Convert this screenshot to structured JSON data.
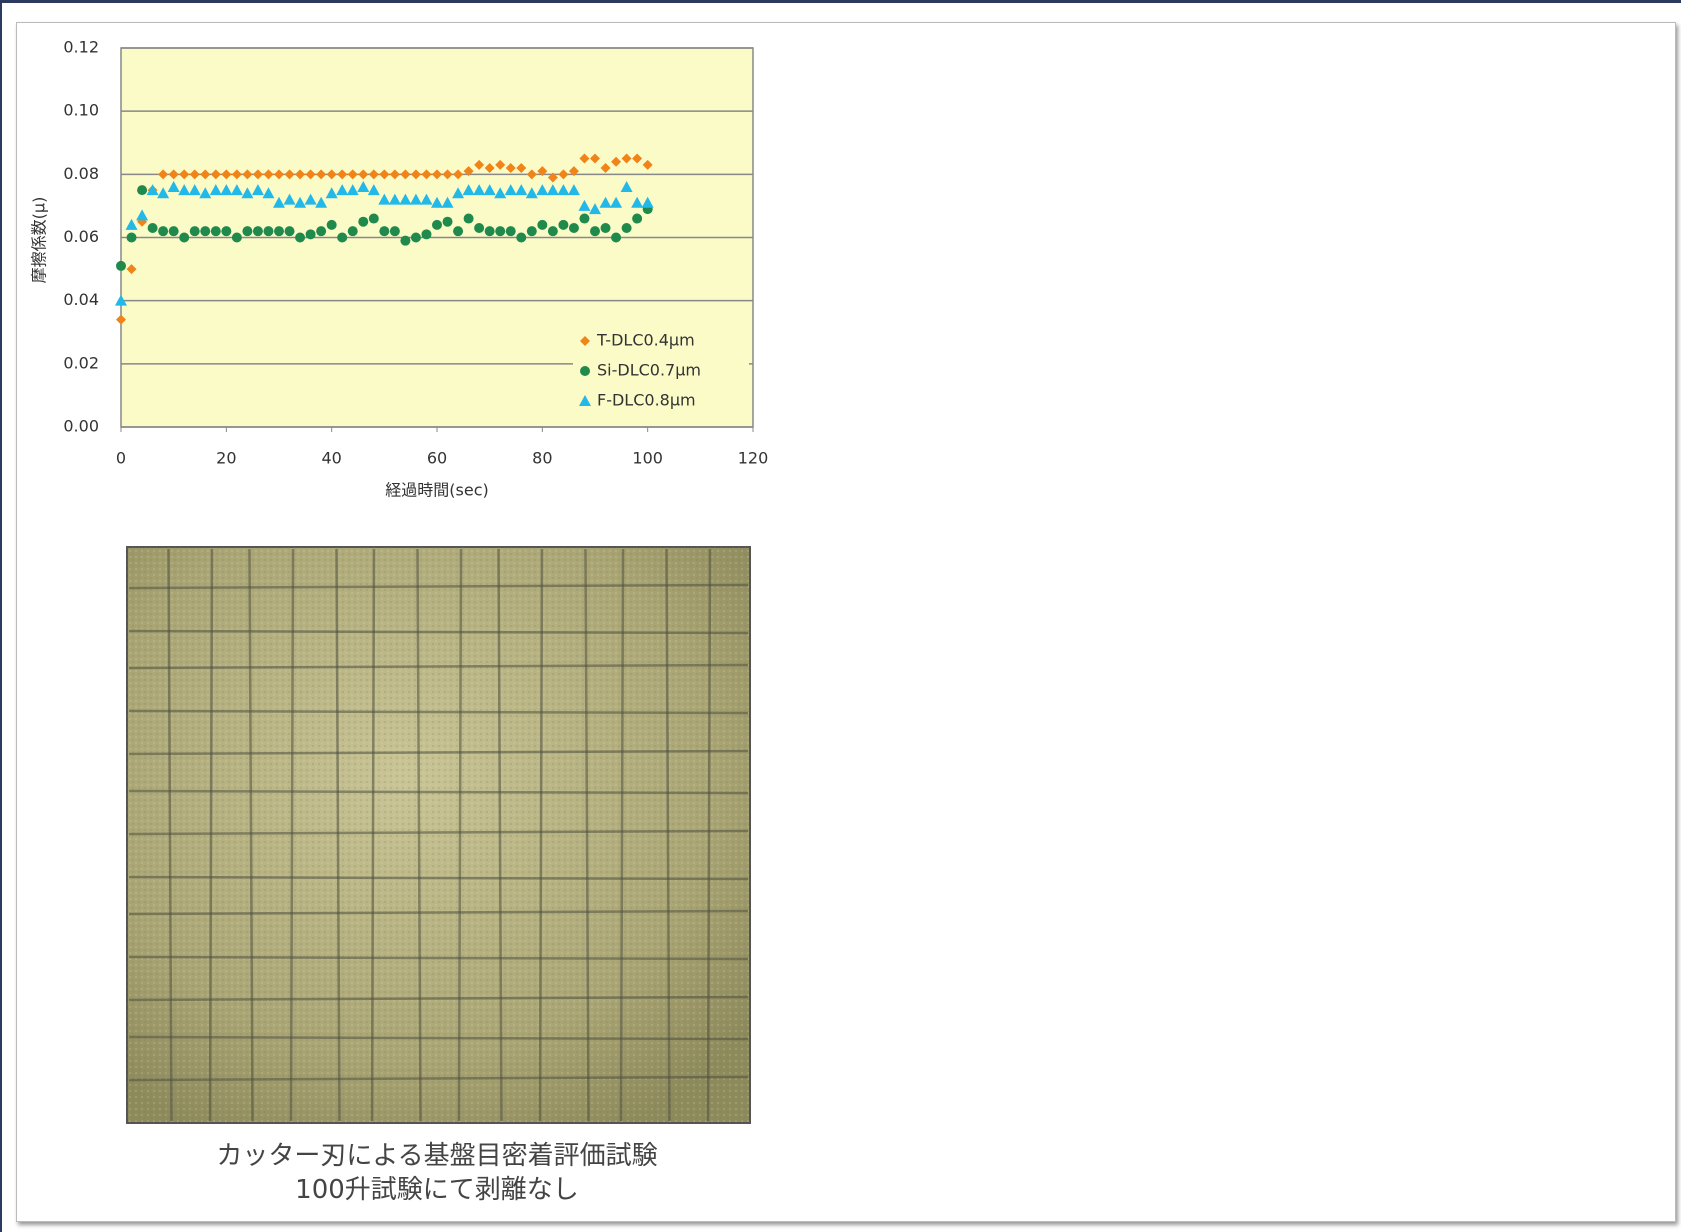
{
  "chart_data": {
    "type": "scatter",
    "y_label": "摩擦係数(μ)",
    "x_label": "経過時間(sec)",
    "x": [
      0,
      2,
      4,
      6,
      8,
      10,
      12,
      14,
      16,
      18,
      20,
      22,
      24,
      26,
      28,
      30,
      32,
      34,
      36,
      38,
      40,
      42,
      44,
      46,
      48,
      50,
      52,
      54,
      56,
      58,
      60,
      62,
      64,
      66,
      68,
      70,
      72,
      74,
      76,
      78,
      80,
      82,
      84,
      86,
      88,
      90,
      92,
      94,
      96,
      98,
      100
    ],
    "series": [
      {
        "name": "T-DLC0.4μm",
        "color": "#f08418",
        "marker": "diamond",
        "values": [
          0.034,
          0.05,
          0.065,
          0.075,
          0.08,
          0.08,
          0.08,
          0.08,
          0.08,
          0.08,
          0.08,
          0.08,
          0.08,
          0.08,
          0.08,
          0.08,
          0.08,
          0.08,
          0.08,
          0.08,
          0.08,
          0.08,
          0.08,
          0.08,
          0.08,
          0.08,
          0.08,
          0.08,
          0.08,
          0.08,
          0.08,
          0.08,
          0.08,
          0.081,
          0.083,
          0.082,
          0.083,
          0.082,
          0.082,
          0.08,
          0.081,
          0.079,
          0.08,
          0.081,
          0.085,
          0.085,
          0.082,
          0.084,
          0.085,
          0.085,
          0.083
        ]
      },
      {
        "name": "Si-DLC0.7μm",
        "color": "#1f8a4c",
        "marker": "circle",
        "values": [
          0.051,
          0.06,
          0.075,
          0.063,
          0.062,
          0.062,
          0.06,
          0.062,
          0.062,
          0.062,
          0.062,
          0.06,
          0.062,
          0.062,
          0.062,
          0.062,
          0.062,
          0.06,
          0.061,
          0.062,
          0.064,
          0.06,
          0.062,
          0.065,
          0.066,
          0.062,
          0.062,
          0.059,
          0.06,
          0.061,
          0.064,
          0.065,
          0.062,
          0.066,
          0.063,
          0.062,
          0.062,
          0.062,
          0.06,
          0.062,
          0.064,
          0.062,
          0.064,
          0.063,
          0.066,
          0.062,
          0.063,
          0.06,
          0.063,
          0.066,
          0.069
        ]
      },
      {
        "name": "F-DLC0.8μm",
        "color": "#22b8e8",
        "marker": "triangle",
        "values": [
          0.04,
          0.064,
          0.067,
          0.075,
          0.074,
          0.076,
          0.075,
          0.075,
          0.074,
          0.075,
          0.075,
          0.075,
          0.074,
          0.075,
          0.074,
          0.071,
          0.072,
          0.071,
          0.072,
          0.071,
          0.074,
          0.075,
          0.075,
          0.076,
          0.075,
          0.072,
          0.072,
          0.072,
          0.072,
          0.072,
          0.071,
          0.071,
          0.074,
          0.075,
          0.075,
          0.075,
          0.074,
          0.075,
          0.075,
          0.074,
          0.075,
          0.075,
          0.075,
          0.075,
          0.07,
          0.069,
          0.071,
          0.071,
          0.076,
          0.071,
          0.071
        ]
      }
    ],
    "xlim": [
      0,
      120
    ],
    "xticks": [
      0,
      20,
      40,
      60,
      80,
      100,
      120
    ],
    "ylim": [
      0,
      0.12
    ],
    "yticks": [
      {
        "value": 0,
        "label": "0.00"
      },
      {
        "value": 0.02,
        "label": "0.02"
      },
      {
        "value": 0.04,
        "label": "0.04"
      },
      {
        "value": 0.06,
        "label": "0.06"
      },
      {
        "value": 0.08,
        "label": "0.08"
      },
      {
        "value": 0.1,
        "label": "0.10"
      },
      {
        "value": 0.12,
        "label": "0.12"
      }
    ],
    "grid": true,
    "legend": "lower right",
    "plot_background": "#fbfbc8"
  },
  "photo": {
    "caption": [
      "カッター刃による基盤目密着評価試験",
      "100升試験にて剥離なし"
    ]
  }
}
